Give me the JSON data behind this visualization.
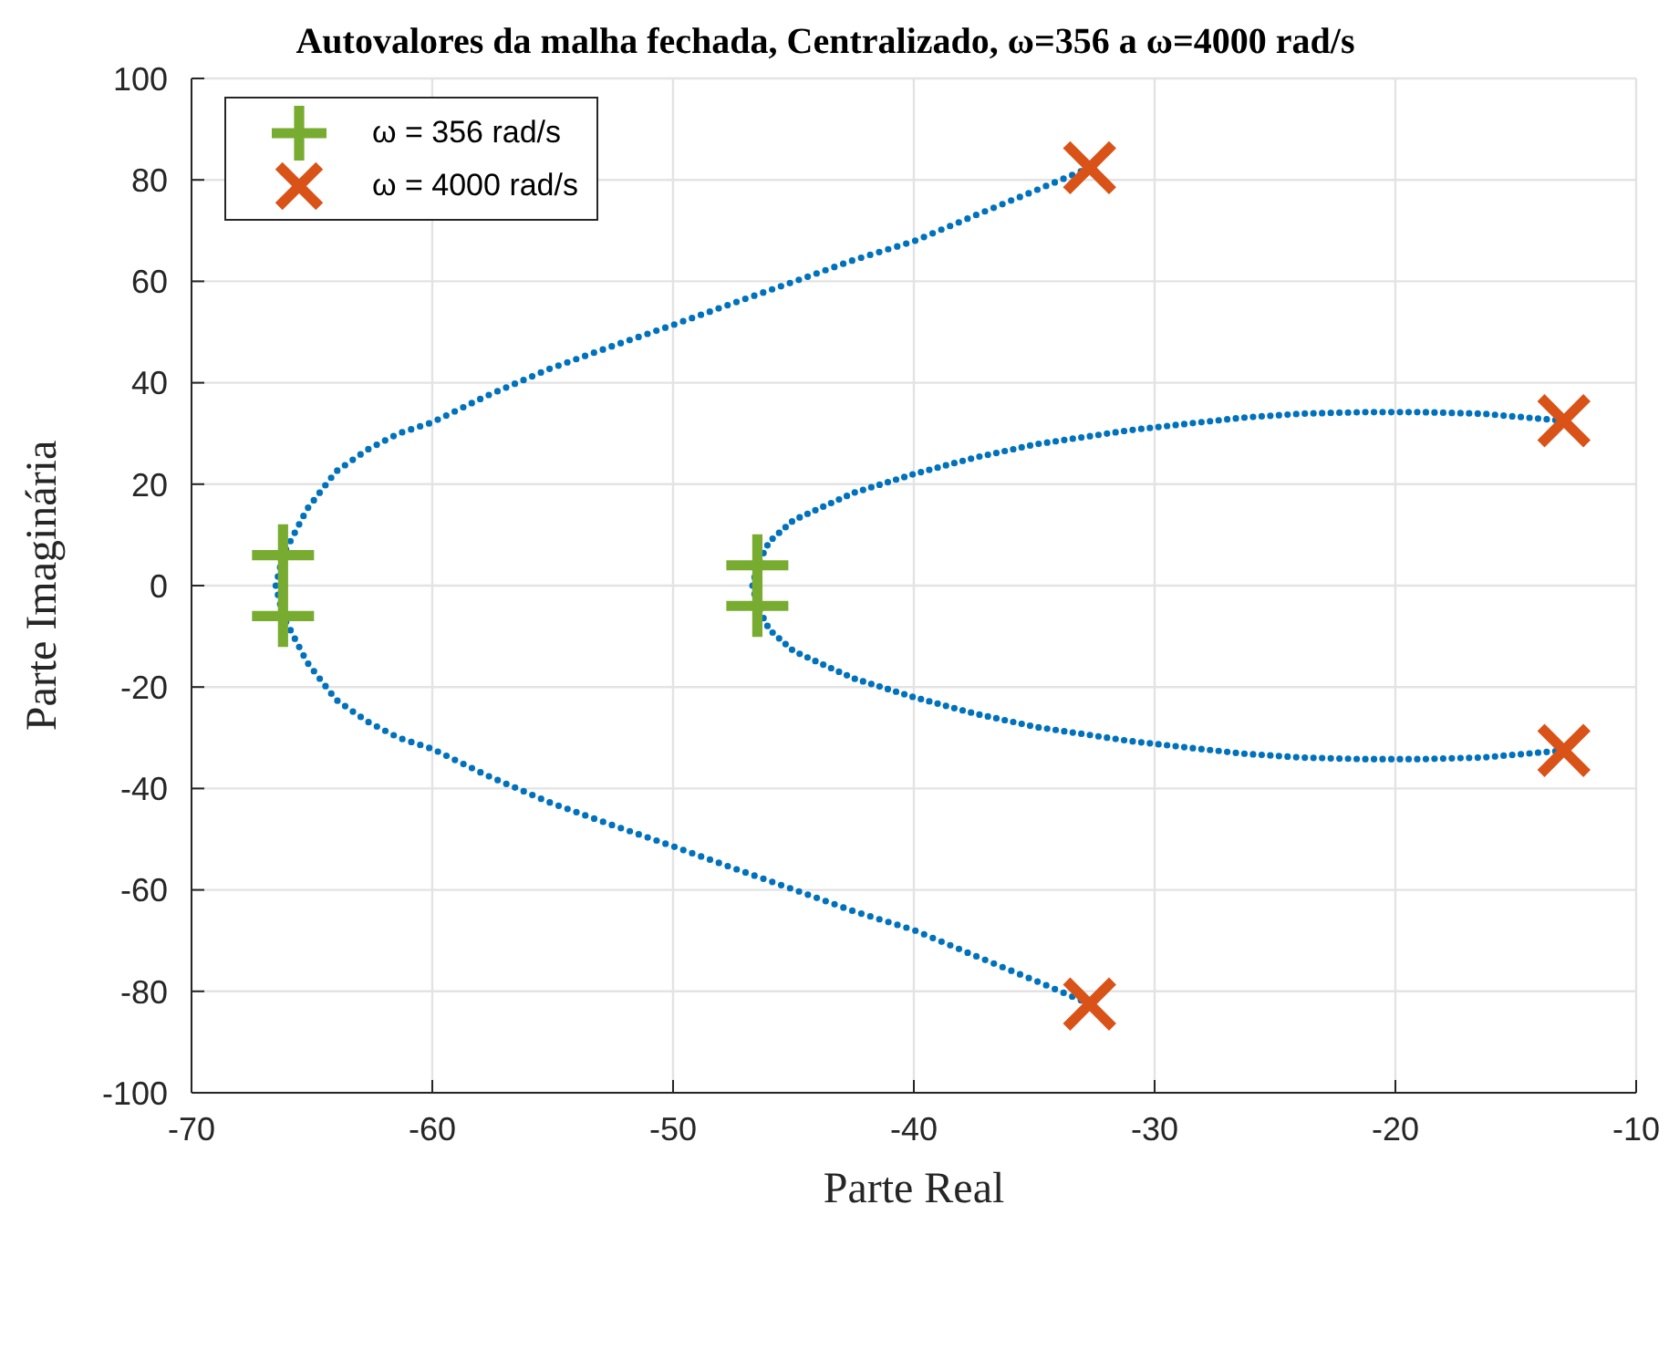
{
  "chart_data": {
    "type": "line",
    "title": "Autovalores da malha fechada, Centralizado, ω=356 a ω=4000 rad/s",
    "xlabel": "Parte Real",
    "ylabel": "Parte Imaginária",
    "xlim": [
      -70,
      -10
    ],
    "xticks": [
      -70,
      -60,
      -50,
      -40,
      -30,
      -20,
      -10
    ],
    "ylim": [
      -100,
      100
    ],
    "yticks": [
      -100,
      -80,
      -60,
      -40,
      -20,
      0,
      20,
      40,
      60,
      80,
      100
    ],
    "grid": true,
    "legend": "top left",
    "line_style": "dotted",
    "series": [
      {
        "color": "#0072bd",
        "x": [
          -32.7,
          -34.9,
          -37.5,
          -40,
          -42.5,
          -45,
          -47.5,
          -50,
          -52.6,
          -55.1,
          -57.7,
          -60,
          -61.4,
          -62.7,
          -64,
          -65.2,
          -65.9,
          -66.2,
          -66.5,
          -66.2,
          -65.9,
          -65.2,
          -64,
          -62.7,
          -61.4,
          -60,
          -57.7,
          -55.1,
          -52.6,
          -50,
          -47.5,
          -45,
          -42.5,
          -40,
          -37.5,
          -34.9,
          -32.7
        ],
        "values": [
          -82.5,
          -78,
          -72.9,
          -67.9,
          -64.2,
          -59.9,
          -55.7,
          -51.4,
          -47.1,
          -42.8,
          -37.5,
          -32.2,
          -30,
          -26.8,
          -22.5,
          -15.1,
          -8.7,
          -6,
          0,
          6,
          8.7,
          15.1,
          22.5,
          26.8,
          30,
          32.2,
          37.5,
          42.8,
          47.1,
          51.4,
          55.7,
          59.9,
          64.2,
          67.9,
          72.9,
          78,
          82.4
        ]
      },
      {
        "color": "#0072bd",
        "x": [
          -13,
          -16.4,
          -18.9,
          -21.4,
          -23.9,
          -26.4,
          -30,
          -31.1,
          -34.9,
          -37.5,
          -40,
          -42.5,
          -45,
          -46,
          -46.5,
          -46.7,
          -46.5,
          -46,
          -45,
          -42.5,
          -40,
          -37.5,
          -34.9,
          -31.1,
          -30,
          -26.4,
          -23.9,
          -21.4,
          -18.9,
          -16.4,
          -13
        ],
        "values": [
          -32.5,
          -33.9,
          -34.2,
          -34.2,
          -33.9,
          -33.1,
          -31.2,
          -30.6,
          -27.9,
          -25.2,
          -22,
          -18.3,
          -12.9,
          -8.7,
          -4,
          0,
          4,
          8.7,
          12.9,
          18.3,
          22,
          25.2,
          27.9,
          30.6,
          31.2,
          33.1,
          33.9,
          34.2,
          34.2,
          33.9,
          32.5
        ]
      },
      {
        "type": "scatter",
        "name": "ω = 356 rad/s",
        "color": "#77ac30",
        "marker": "cross",
        "x": [
          -66.2,
          -66.2,
          -46.5,
          -46.5
        ],
        "values": [
          6,
          -6,
          4,
          -4
        ]
      },
      {
        "type": "scatter",
        "name": "ω = 4000 rad/s",
        "color": "#d95319",
        "x": [
          -32.7,
          -32.7,
          -13,
          -13
        ],
        "values": [
          82.4,
          -82.5,
          32.5,
          -32.5
        ]
      }
    ]
  }
}
